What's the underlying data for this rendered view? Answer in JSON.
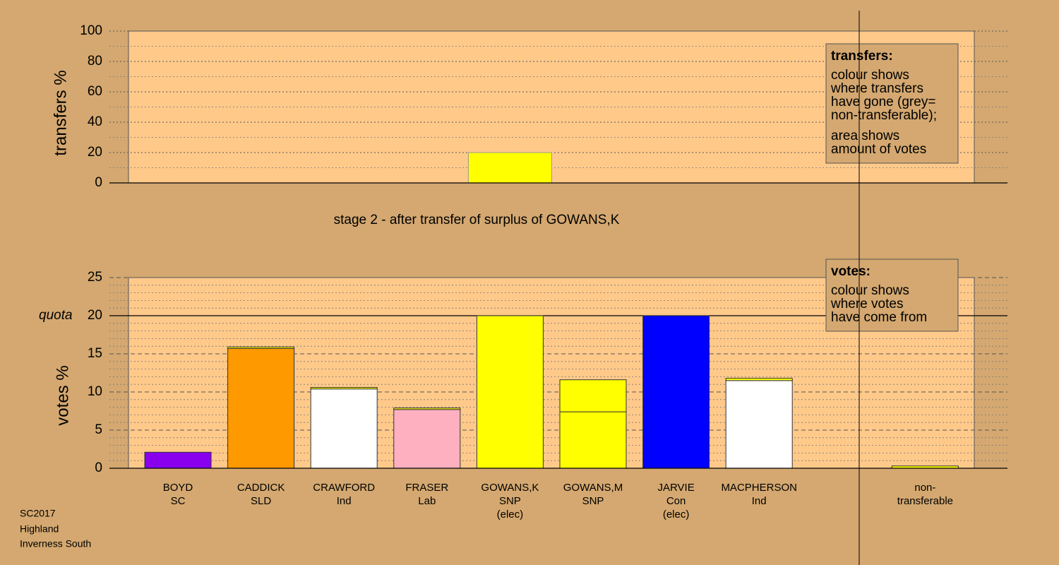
{
  "chart_data": [
    {
      "type": "bar",
      "ylabel": "transfers %",
      "values": [
        null,
        null,
        null,
        null,
        20,
        null,
        null,
        null,
        null,
        null
      ],
      "color": "#ffff00",
      "ylim": [
        0,
        100
      ],
      "yticks": [
        0,
        20,
        40,
        60,
        80,
        100
      ],
      "grid": true,
      "grid_style": "dotted",
      "minor_per_tick": 2,
      "legend": {
        "title": "transfers:",
        "notes": [
          [
            "colour shows",
            "where transfers",
            "have gone (grey=",
            "non-transferable);"
          ],
          [
            "area shows",
            "amount of votes"
          ]
        ]
      }
    },
    {
      "type": "stacked_bar",
      "title": "stage 2 - after transfer of surplus of GOWANS,K",
      "ylabel": "votes %",
      "categories": [
        [
          "BOYD",
          "SC"
        ],
        [
          "CADDICK",
          "SLD"
        ],
        [
          "CRAWFORD",
          "Ind"
        ],
        [
          "FRASER",
          "Lab"
        ],
        [
          "GOWANS,K",
          "SNP",
          "(elec)"
        ],
        [
          "GOWANS,M",
          "SNP"
        ],
        [
          "JARVIE",
          "Con",
          "(elec)"
        ],
        [
          "MACPHERSON",
          "Ind"
        ],
        null,
        [
          "non-",
          "transferable"
        ]
      ],
      "series": [
        {
          "colors": [
            "#8800ee",
            "#ff9900",
            "#ffffff",
            "#ffb0c0",
            "#ffff00",
            "#ffff00",
            "#0000ff",
            "#ffffff",
            null,
            "#ffff00"
          ],
          "values": [
            2.1,
            15.7,
            10.4,
            7.7,
            20,
            7.4,
            20,
            11.5,
            null,
            0.3
          ]
        },
        {
          "color": "#ffff00",
          "values": [
            null,
            0.2,
            0.2,
            0.2,
            null,
            4.2,
            null,
            0.3,
            null,
            null
          ]
        }
      ],
      "ylim": [
        0,
        25
      ],
      "yticks": [
        0,
        5,
        10,
        15,
        20,
        25
      ],
      "quota": 20,
      "quota_label": "quota",
      "grid": true,
      "grid_style": "dashed",
      "minor_per_tick": 5,
      "legend": {
        "title": "votes:",
        "notes": [
          [
            "colour shows",
            "where votes",
            "have come from"
          ]
        ]
      }
    }
  ],
  "footer": [
    "SC2017",
    "Highland",
    "Inverness South"
  ]
}
